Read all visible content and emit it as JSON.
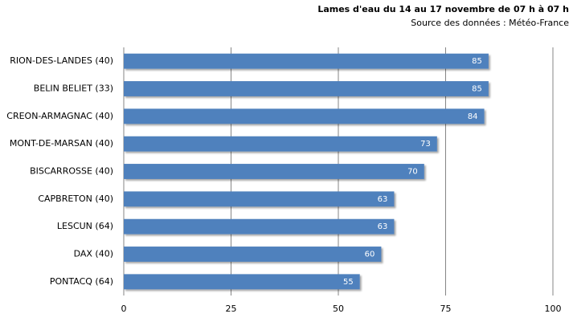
{
  "chart_data": {
    "type": "bar",
    "orientation": "horizontal",
    "title": "Lames d'eau du 14 au 17 novembre de 07 h à 07 h",
    "subtitle": "Source des données : Météo-France",
    "categories": [
      "RION-DES-LANDES (40)",
      "BELIN BELIET (33)",
      "CREON-ARMAGNAC (40)",
      "MONT-DE-MARSAN (40)",
      "BISCARROSSE (40)",
      "CAPBRETON (40)",
      "LESCUN (64)",
      "DAX (40)",
      "PONTACQ (64)"
    ],
    "values": [
      85,
      85,
      84,
      73,
      70,
      63,
      63,
      60,
      55
    ],
    "color": "#4f81bd",
    "xlim": [
      0,
      100
    ],
    "xticks": [
      0,
      25,
      50,
      75,
      100
    ],
    "grid": true
  }
}
